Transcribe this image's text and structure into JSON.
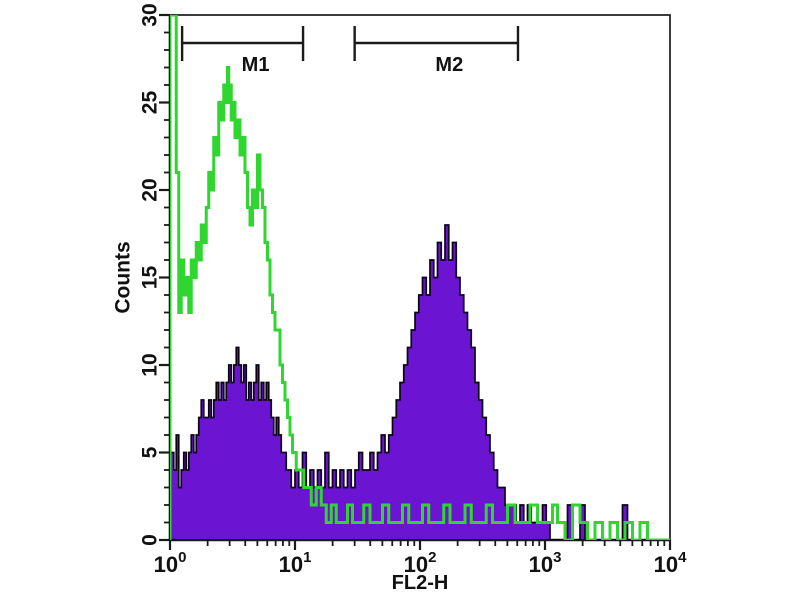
{
  "figure": {
    "background": "#ffffff",
    "frame_color": "#1a1a1a"
  },
  "chart_data": {
    "type": "area",
    "chart_kind": "flow-cytometry-overlay-histogram",
    "title": "",
    "xlabel": "FL2-H",
    "ylabel": "Counts",
    "x_scale": "log10",
    "x_range": [
      1,
      10000
    ],
    "ylim": [
      0,
      30
    ],
    "grid": false,
    "legend": "none",
    "y_ticks": [
      {
        "label": "0",
        "value": 0
      },
      {
        "label": "5",
        "value": 5
      },
      {
        "label": "10",
        "value": 10
      },
      {
        "label": "15",
        "value": 15
      },
      {
        "label": "20",
        "value": 20
      },
      {
        "label": "25",
        "value": 25
      },
      {
        "label": "30",
        "value": 30
      }
    ],
    "x_ticks": [
      {
        "base": "10",
        "exp": "0",
        "decade": 0
      },
      {
        "base": "10",
        "exp": "1",
        "decade": 1
      },
      {
        "base": "10",
        "exp": "2",
        "decade": 2
      },
      {
        "base": "10",
        "exp": "3",
        "decade": 3
      },
      {
        "base": "10",
        "exp": "4",
        "decade": 4
      }
    ],
    "markers": [
      {
        "label": "M1",
        "from": 1.25,
        "to": 11.6
      },
      {
        "label": "M2",
        "from": 30,
        "to": 608
      }
    ],
    "series": [
      {
        "name": "green-open-histogram",
        "style": "line",
        "color": "#2FD62F",
        "line_width": 3,
        "points": [
          [
            0.0,
            30
          ],
          [
            0.035,
            30
          ],
          [
            0.05,
            21
          ],
          [
            0.07,
            13
          ],
          [
            0.09,
            16
          ],
          [
            0.11,
            14
          ],
          [
            0.13,
            15
          ],
          [
            0.15,
            13
          ],
          [
            0.17,
            16
          ],
          [
            0.19,
            15
          ],
          [
            0.21,
            17
          ],
          [
            0.23,
            16
          ],
          [
            0.25,
            18
          ],
          [
            0.27,
            17
          ],
          [
            0.29,
            19
          ],
          [
            0.31,
            21
          ],
          [
            0.33,
            20
          ],
          [
            0.35,
            23
          ],
          [
            0.37,
            22
          ],
          [
            0.39,
            25
          ],
          [
            0.41,
            24
          ],
          [
            0.43,
            26
          ],
          [
            0.44,
            25
          ],
          [
            0.45,
            26
          ],
          [
            0.46,
            27
          ],
          [
            0.47,
            25
          ],
          [
            0.48,
            26
          ],
          [
            0.49,
            24
          ],
          [
            0.5,
            25
          ],
          [
            0.52,
            23
          ],
          [
            0.54,
            24
          ],
          [
            0.56,
            22
          ],
          [
            0.58,
            23
          ],
          [
            0.6,
            21
          ],
          [
            0.62,
            19
          ],
          [
            0.64,
            18
          ],
          [
            0.66,
            20
          ],
          [
            0.68,
            19
          ],
          [
            0.7,
            22
          ],
          [
            0.72,
            20
          ],
          [
            0.74,
            19
          ],
          [
            0.76,
            17
          ],
          [
            0.78,
            16
          ],
          [
            0.8,
            14
          ],
          [
            0.82,
            13
          ],
          [
            0.84,
            12
          ],
          [
            0.86,
            12
          ],
          [
            0.88,
            10
          ],
          [
            0.9,
            9
          ],
          [
            0.92,
            8
          ],
          [
            0.94,
            7
          ],
          [
            0.96,
            6
          ],
          [
            0.98,
            5
          ],
          [
            1.01,
            4
          ],
          [
            1.04,
            4
          ],
          [
            1.07,
            3
          ],
          [
            1.1,
            3
          ],
          [
            1.13,
            2
          ],
          [
            1.17,
            3
          ],
          [
            1.21,
            2
          ],
          [
            1.25,
            1
          ],
          [
            1.29,
            2
          ],
          [
            1.33,
            1
          ],
          [
            1.38,
            1
          ],
          [
            1.42,
            2
          ],
          [
            1.46,
            1
          ],
          [
            1.51,
            1
          ],
          [
            1.55,
            2
          ],
          [
            1.6,
            1
          ],
          [
            1.65,
            1
          ],
          [
            1.7,
            2
          ],
          [
            1.75,
            1
          ],
          [
            1.81,
            1
          ],
          [
            1.86,
            2
          ],
          [
            1.91,
            1
          ],
          [
            1.97,
            1
          ],
          [
            2.02,
            2
          ],
          [
            2.07,
            1
          ],
          [
            2.13,
            1
          ],
          [
            2.19,
            2
          ],
          [
            2.24,
            1
          ],
          [
            2.3,
            1
          ],
          [
            2.36,
            2
          ],
          [
            2.41,
            1
          ],
          [
            2.47,
            1
          ],
          [
            2.53,
            2
          ],
          [
            2.58,
            1
          ],
          [
            2.64,
            1
          ],
          [
            2.7,
            2
          ],
          [
            2.76,
            1
          ],
          [
            2.82,
            1
          ],
          [
            2.88,
            2
          ],
          [
            2.94,
            1
          ],
          [
            3.0,
            1
          ],
          [
            3.06,
            2
          ],
          [
            3.1,
            1
          ],
          [
            3.16,
            0
          ],
          [
            3.22,
            2
          ],
          [
            3.28,
            1
          ],
          [
            3.34,
            0
          ],
          [
            3.4,
            1
          ],
          [
            3.46,
            0
          ],
          [
            3.52,
            1
          ],
          [
            3.58,
            0
          ],
          [
            3.64,
            1
          ],
          [
            3.7,
            0
          ],
          [
            3.76,
            1
          ],
          [
            3.82,
            0
          ],
          [
            4.0,
            0
          ]
        ]
      },
      {
        "name": "purple-filled-histogram",
        "style": "filled",
        "fill": "#6B14D2",
        "outline": "#0B0314",
        "line_width": 1.7,
        "points": [
          [
            0.0,
            5
          ],
          [
            0.03,
            4
          ],
          [
            0.05,
            6
          ],
          [
            0.07,
            3
          ],
          [
            0.09,
            4
          ],
          [
            0.11,
            5
          ],
          [
            0.13,
            4
          ],
          [
            0.15,
            5
          ],
          [
            0.17,
            6
          ],
          [
            0.19,
            5
          ],
          [
            0.21,
            6
          ],
          [
            0.23,
            7
          ],
          [
            0.25,
            8
          ],
          [
            0.27,
            7
          ],
          [
            0.29,
            7
          ],
          [
            0.31,
            8
          ],
          [
            0.33,
            7
          ],
          [
            0.35,
            8
          ],
          [
            0.37,
            9
          ],
          [
            0.39,
            8
          ],
          [
            0.41,
            9
          ],
          [
            0.43,
            8
          ],
          [
            0.45,
            9
          ],
          [
            0.47,
            10
          ],
          [
            0.49,
            9
          ],
          [
            0.51,
            10
          ],
          [
            0.53,
            11
          ],
          [
            0.55,
            10
          ],
          [
            0.57,
            9
          ],
          [
            0.59,
            10
          ],
          [
            0.61,
            8
          ],
          [
            0.63,
            9
          ],
          [
            0.65,
            8
          ],
          [
            0.67,
            9
          ],
          [
            0.69,
            10
          ],
          [
            0.71,
            8
          ],
          [
            0.73,
            9
          ],
          [
            0.75,
            8
          ],
          [
            0.77,
            9
          ],
          [
            0.79,
            8
          ],
          [
            0.81,
            7
          ],
          [
            0.83,
            6
          ],
          [
            0.85,
            7
          ],
          [
            0.87,
            6
          ],
          [
            0.89,
            5
          ],
          [
            0.91,
            5
          ],
          [
            0.93,
            4
          ],
          [
            0.95,
            4
          ],
          [
            0.97,
            3
          ],
          [
            1.0,
            4
          ],
          [
            1.03,
            3
          ],
          [
            1.06,
            5
          ],
          [
            1.09,
            3
          ],
          [
            1.12,
            4
          ],
          [
            1.15,
            3
          ],
          [
            1.18,
            4
          ],
          [
            1.21,
            3
          ],
          [
            1.24,
            5
          ],
          [
            1.27,
            3
          ],
          [
            1.3,
            4
          ],
          [
            1.33,
            3
          ],
          [
            1.36,
            4
          ],
          [
            1.39,
            3
          ],
          [
            1.42,
            4
          ],
          [
            1.45,
            3
          ],
          [
            1.48,
            4
          ],
          [
            1.51,
            5
          ],
          [
            1.54,
            4
          ],
          [
            1.57,
            4
          ],
          [
            1.6,
            5
          ],
          [
            1.63,
            4
          ],
          [
            1.66,
            5
          ],
          [
            1.69,
            6
          ],
          [
            1.72,
            5
          ],
          [
            1.75,
            6
          ],
          [
            1.78,
            7
          ],
          [
            1.81,
            8
          ],
          [
            1.84,
            9
          ],
          [
            1.87,
            10
          ],
          [
            1.9,
            11
          ],
          [
            1.93,
            12
          ],
          [
            1.96,
            13
          ],
          [
            1.99,
            14
          ],
          [
            2.02,
            15
          ],
          [
            2.05,
            14
          ],
          [
            2.08,
            16
          ],
          [
            2.11,
            15
          ],
          [
            2.14,
            17
          ],
          [
            2.17,
            16
          ],
          [
            2.2,
            18
          ],
          [
            2.23,
            16
          ],
          [
            2.26,
            17
          ],
          [
            2.29,
            15
          ],
          [
            2.32,
            14
          ],
          [
            2.35,
            13
          ],
          [
            2.38,
            12
          ],
          [
            2.41,
            11
          ],
          [
            2.44,
            9
          ],
          [
            2.47,
            8
          ],
          [
            2.5,
            7
          ],
          [
            2.53,
            6
          ],
          [
            2.56,
            5
          ],
          [
            2.59,
            4
          ],
          [
            2.62,
            3
          ],
          [
            2.65,
            3
          ],
          [
            2.68,
            2
          ],
          [
            2.71,
            2
          ],
          [
            2.74,
            2
          ],
          [
            2.77,
            1
          ],
          [
            2.8,
            2
          ],
          [
            2.83,
            1
          ],
          [
            2.86,
            2
          ],
          [
            2.89,
            1
          ],
          [
            2.92,
            1
          ],
          [
            2.95,
            1
          ],
          [
            2.98,
            2
          ],
          [
            3.01,
            1
          ],
          [
            3.04,
            0
          ],
          [
            3.18,
            2
          ],
          [
            3.22,
            0
          ],
          [
            3.28,
            2
          ],
          [
            3.32,
            0
          ],
          [
            3.6,
            0
          ],
          [
            3.62,
            2
          ],
          [
            3.66,
            0
          ],
          [
            4.0,
            0
          ]
        ]
      }
    ]
  }
}
